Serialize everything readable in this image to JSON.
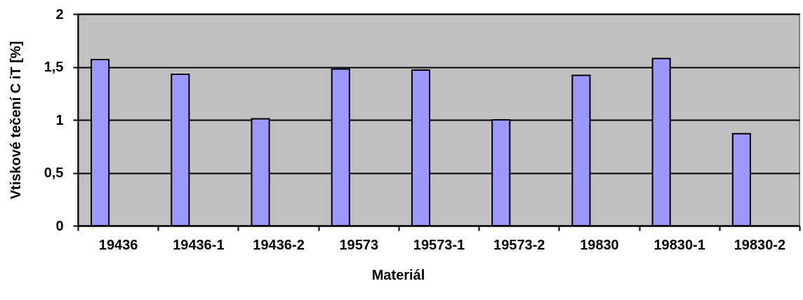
{
  "chart_data": {
    "type": "bar",
    "xlabel": "Materiál",
    "ylabel": "Vtiskové tečení C iT [%]",
    "categories": [
      "19436",
      "19436-1",
      "19436-2",
      "19573",
      "19573-1",
      "19573-2",
      "19830",
      "19830-1",
      "19830-2"
    ],
    "values": [
      1.57,
      1.43,
      1.01,
      1.48,
      1.47,
      1.0,
      1.42,
      1.58,
      0.87
    ],
    "color": "#9999ff",
    "ylim": [
      0,
      2
    ],
    "yticks": [
      0,
      {
        "value": 0.5,
        "label": "0,5"
      },
      1,
      {
        "value": 1.5,
        "label": "1,5"
      },
      2
    ],
    "grid": "y"
  }
}
